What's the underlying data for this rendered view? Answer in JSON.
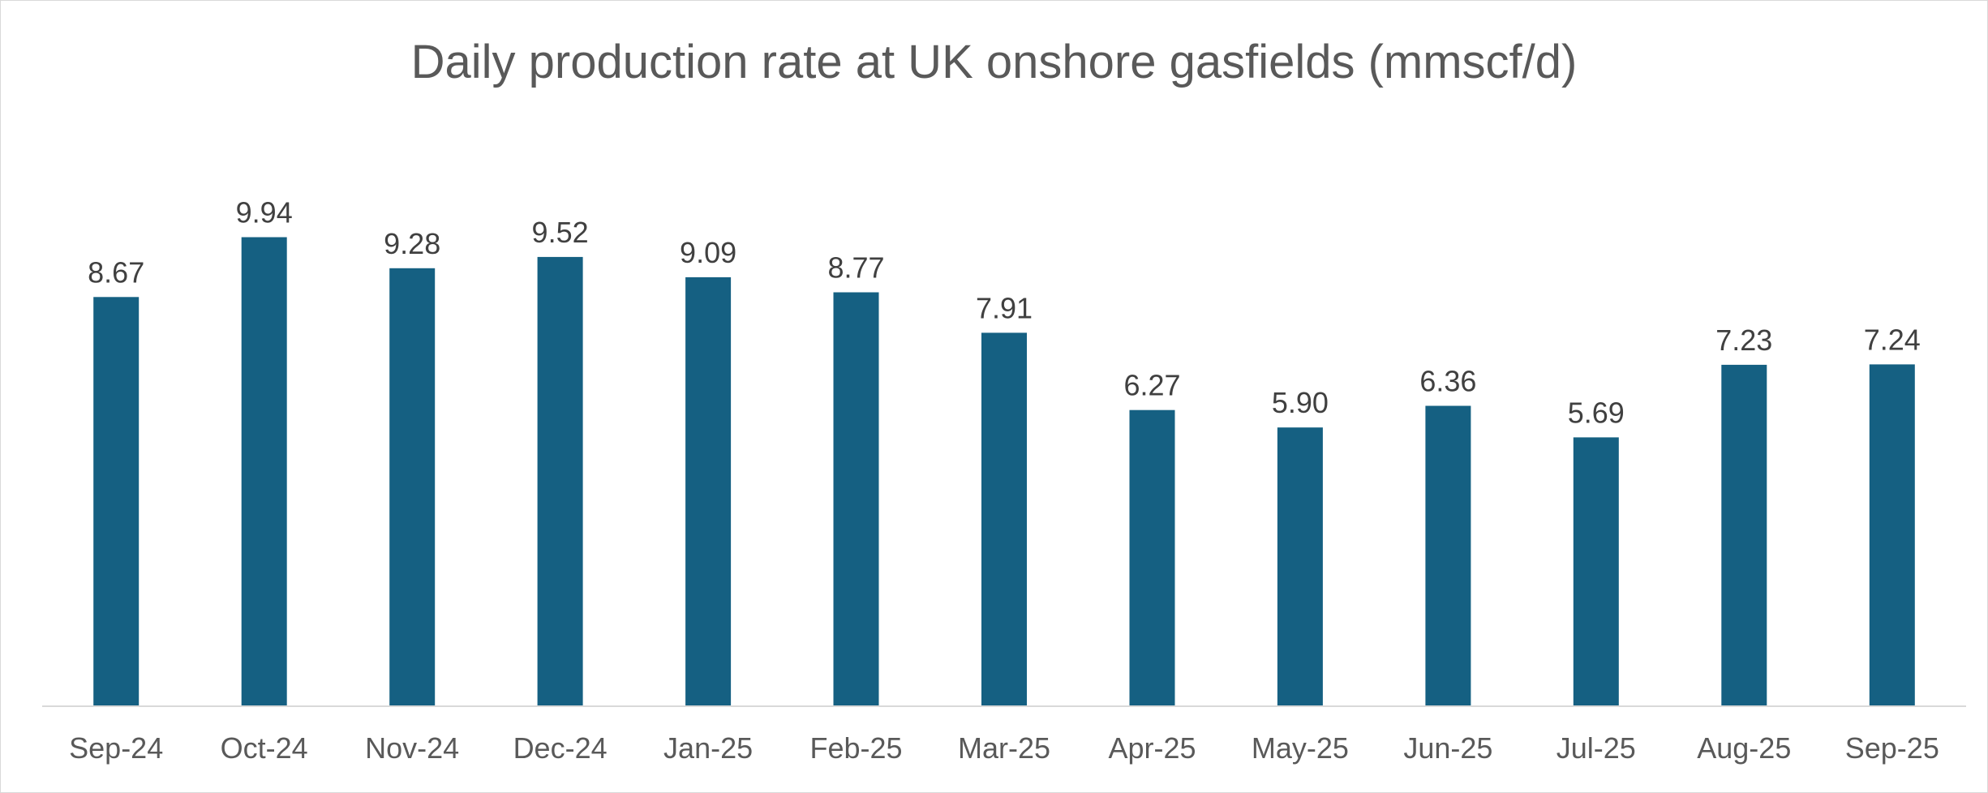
{
  "chart_data": {
    "type": "bar",
    "title": "Daily production rate at UK onshore gasfields (mmscf/d)",
    "xlabel": "",
    "ylabel": "",
    "categories": [
      "Sep-24",
      "Oct-24",
      "Nov-24",
      "Dec-24",
      "Jan-25",
      "Feb-25",
      "Mar-25",
      "Apr-25",
      "May-25",
      "Jun-25",
      "Jul-25",
      "Aug-25",
      "Sep-25"
    ],
    "values": [
      8.67,
      9.94,
      9.28,
      9.52,
      9.09,
      8.77,
      7.91,
      6.27,
      5.9,
      6.36,
      5.69,
      7.23,
      7.24
    ],
    "data_labels": [
      "8.67",
      "9.94",
      "9.28",
      "9.52",
      "9.09",
      "8.77",
      "7.91",
      "6.27",
      "5.90",
      "6.36",
      "5.69",
      "7.23",
      "7.24"
    ],
    "ylim": [
      0,
      12
    ],
    "grid": false,
    "legend": "none",
    "bar_color": "#156082",
    "axis_color": "#d9d9d9"
  }
}
